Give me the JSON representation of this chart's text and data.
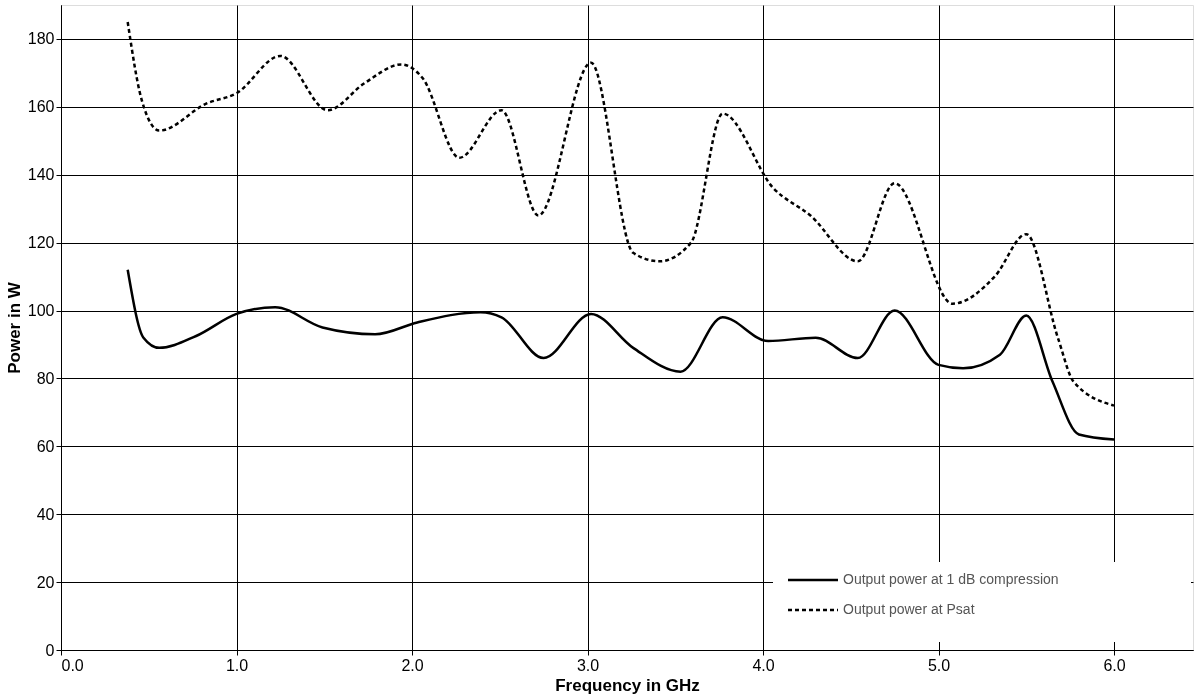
{
  "chart_data": {
    "type": "line",
    "xlabel": "Frequency in GHz",
    "ylabel": "Power in W",
    "xlim": [
      0,
      6.45
    ],
    "xticks": [
      {
        "value": 0,
        "label": "0.0"
      },
      {
        "value": 1,
        "label": "1.0"
      },
      {
        "value": 2,
        "label": "2.0"
      },
      {
        "value": 3,
        "label": "3.0"
      },
      {
        "value": 4,
        "label": "4.0"
      },
      {
        "value": 5,
        "label": "5.0"
      },
      {
        "value": 6,
        "label": "6.0"
      }
    ],
    "ylim": [
      0,
      190
    ],
    "yticks": [
      0,
      20,
      40,
      60,
      80,
      100,
      120,
      140,
      160,
      180
    ],
    "grid": true,
    "legend": "bottom right",
    "series": [
      {
        "name": "Output power at 1 dB compression",
        "color": "#000000",
        "line_style": "solid",
        "x": [
          0.38,
          0.47,
          0.56,
          0.77,
          1.0,
          1.22,
          1.49,
          1.79,
          2.03,
          2.39,
          2.51,
          2.75,
          3.02,
          3.26,
          3.53,
          3.77,
          4.03,
          4.3,
          4.54,
          4.75,
          5.0,
          5.14,
          5.35,
          5.5,
          5.65,
          5.8,
          6.0
        ],
        "values": [
          112,
          92,
          89,
          92.5,
          99,
          101,
          95,
          93,
          96.5,
          99.5,
          98,
          86,
          99,
          89,
          82,
          98,
          91,
          92,
          86,
          100,
          84,
          83,
          87,
          98.5,
          79,
          63.5,
          62
        ]
      },
      {
        "name": "Output power at Psat",
        "color": "#000000",
        "line_style": "dashed",
        "x": [
          0.38,
          0.46,
          0.56,
          0.83,
          1.0,
          1.25,
          1.52,
          1.73,
          1.94,
          2.06,
          2.27,
          2.51,
          2.72,
          3.02,
          3.26,
          3.41,
          3.59,
          3.77,
          4.06,
          4.27,
          4.54,
          4.75,
          5.08,
          5.32,
          5.5,
          5.68,
          5.77,
          6.0
        ],
        "values": [
          185,
          162,
          153,
          161,
          164,
          175,
          159,
          167,
          172.5,
          168.5,
          145,
          159,
          128,
          173,
          117,
          114.5,
          120,
          158,
          136,
          128,
          114.5,
          137.5,
          102,
          110,
          122.5,
          92,
          79,
          72
        ]
      }
    ]
  }
}
